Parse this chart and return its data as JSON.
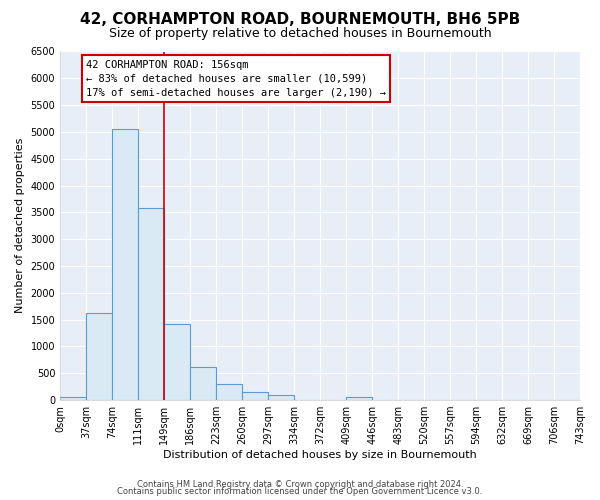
{
  "title": "42, CORHAMPTON ROAD, BOURNEMOUTH, BH6 5PB",
  "subtitle": "Size of property relative to detached houses in Bournemouth",
  "xlabel": "Distribution of detached houses by size in Bournemouth",
  "ylabel": "Number of detached properties",
  "bin_edges": [
    0,
    37,
    74,
    111,
    149,
    186,
    223,
    260,
    297,
    334,
    372,
    409,
    446,
    483,
    520,
    557,
    594,
    632,
    669,
    706,
    743
  ],
  "bin_labels": [
    "0sqm",
    "37sqm",
    "74sqm",
    "111sqm",
    "149sqm",
    "186sqm",
    "223sqm",
    "260sqm",
    "297sqm",
    "334sqm",
    "372sqm",
    "409sqm",
    "446sqm",
    "483sqm",
    "520sqm",
    "557sqm",
    "594sqm",
    "632sqm",
    "669sqm",
    "706sqm",
    "743sqm"
  ],
  "counts": [
    60,
    1620,
    5060,
    3580,
    1420,
    620,
    300,
    150,
    100,
    0,
    0,
    60,
    0,
    0,
    0,
    0,
    0,
    0,
    0,
    0
  ],
  "bar_facecolor": "#daeaf5",
  "bar_edgecolor": "#5b9bd5",
  "vline_x": 149,
  "vline_color": "#cc0000",
  "annotation_title": "42 CORHAMPTON ROAD: 156sqm",
  "annotation_line1": "← 83% of detached houses are smaller (10,599)",
  "annotation_line2": "17% of semi-detached houses are larger (2,190) →",
  "annotation_box_edgecolor": "#cc0000",
  "ylim": [
    0,
    6500
  ],
  "yticks": [
    0,
    500,
    1000,
    1500,
    2000,
    2500,
    3000,
    3500,
    4000,
    4500,
    5000,
    5500,
    6000,
    6500
  ],
  "footer1": "Contains HM Land Registry data © Crown copyright and database right 2024.",
  "footer2": "Contains public sector information licensed under the Open Government Licence v3.0.",
  "bg_color": "#ffffff",
  "plot_bg_color": "#e8eef8",
  "grid_color": "#ffffff",
  "title_fontsize": 11,
  "subtitle_fontsize": 9,
  "axis_label_fontsize": 8,
  "tick_fontsize": 7,
  "footer_fontsize": 6
}
